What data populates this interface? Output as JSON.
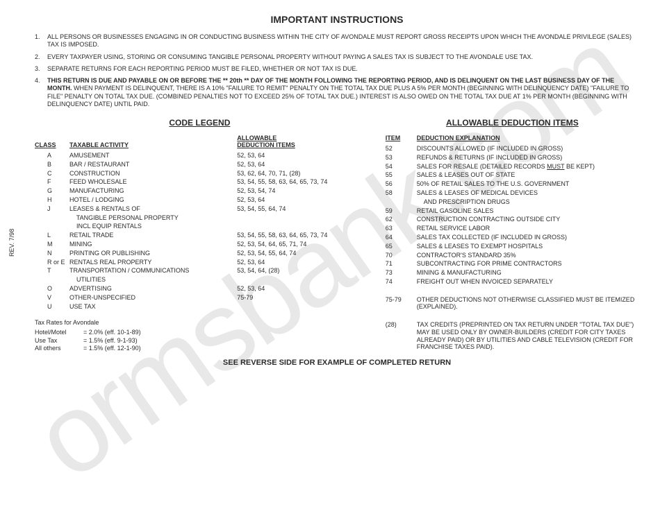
{
  "watermark": "ormsbank.com",
  "rev_label": "REV. 7/98",
  "title": "IMPORTANT INSTRUCTIONS",
  "instructions": [
    {
      "n": "1.",
      "text": "ALL PERSONS OR BUSINESSES ENGAGING IN OR CONDUCTING BUSINESS WITHIN THE CITY OF AVONDALE MUST REPORT GROSS RECEIPTS UPON WHICH THE AVONDALE PRIVILEGE (SALES) TAX IS IMPOSED."
    },
    {
      "n": "2.",
      "text": "EVERY TAXPAYER USING, STORING OR CONSUMING TANGIBLE PERSONAL PROPERTY WITHOUT PAYING A SALES TAX IS SUBJECT TO THE AVONDALE USE TAX."
    },
    {
      "n": "3.",
      "text": "SEPARATE RETURNS FOR EACH REPORTING PERIOD MUST BE FILED, WHETHER OR NOT TAX IS DUE."
    },
    {
      "n": "4.",
      "bold_a": "THIS RETURN IS DUE AND PAYABLE ON OR BEFORE THE ** 20th ** DAY OF THE MONTH FOLLOWING THE REPORTING PERIOD, AND IS DELINQUENT ON THE LAST BUSINESS DAY OF THE MONTH.",
      "text_b": " WHEN PAYMENT IS DELINQUENT, THERE IS A 10% \"FAILURE TO REMIT\" PENALTY ON THE TOTAL TAX DUE PLUS A 5% PER MONTH (BEGINNING WITH DELINQUENCY DATE) \"FAILURE TO FILE\" PENALTY ON TOTAL TAX DUE. (COMBINED PENALTIES NOT TO EXCEED 25% OF TOTAL TAX DUE.) INTEREST IS ALSO OWED ON THE TOTAL TAX DUE AT 1% PER MONTH (BEGINNING WITH DELINQUENCY DATE) UNTIL PAID."
    }
  ],
  "code_legend_title": "CODE LEGEND",
  "code_legend_headers": {
    "class": "CLASS",
    "activity": "TAXABLE ACTIVITY",
    "allow_a": "ALLOWABLE",
    "allow_b": "DEDUCTION ITEMS"
  },
  "code_legend": [
    {
      "c": "A",
      "a": "AMUSEMENT",
      "d": "52, 53, 64"
    },
    {
      "c": "B",
      "a": "BAR / RESTAURANT",
      "d": "52, 53, 64"
    },
    {
      "c": "C",
      "a": "CONSTRUCTION",
      "d": "53, 62, 64, 70, 71, (28)"
    },
    {
      "c": "F",
      "a": "FEED WHOLESALE",
      "d": "53, 54, 55, 58, 63, 64, 65, 73, 74"
    },
    {
      "c": "G",
      "a": "MANUFACTURING",
      "d": "52, 53, 54, 74"
    },
    {
      "c": "H",
      "a": "HOTEL / LODGING",
      "d": "52, 53, 64"
    },
    {
      "c": "J",
      "a": "LEASES & RENTALS OF",
      "d": "53, 54, 55, 64, 74"
    },
    {
      "c": "",
      "a": "    TANGIBLE PERSONAL PROPERTY",
      "d": ""
    },
    {
      "c": "",
      "a": "    INCL EQUIP RENTALS",
      "d": ""
    },
    {
      "c": "L",
      "a": "RETAIL TRADE",
      "d": "53, 54, 55, 58, 63, 64, 65, 73, 74"
    },
    {
      "c": "M",
      "a": "MINING",
      "d": "52, 53, 54, 64, 65, 71, 74"
    },
    {
      "c": "N",
      "a": "PRINTING OR PUBLISHING",
      "d": "52, 53, 54, 55, 64, 74"
    },
    {
      "c": "R or E",
      "a": "RENTALS REAL PROPERTY",
      "d": "52, 53, 64"
    },
    {
      "c": "T",
      "a": "TRANSPORTATION / COMMUNICATIONS",
      "d": "53, 54, 64, (28)"
    },
    {
      "c": "",
      "a": "    UTILITIES",
      "d": ""
    },
    {
      "c": "O",
      "a": "ADVERTISING",
      "d": "52, 53, 64"
    },
    {
      "c": "V",
      "a": "OTHER-UNSPECIFIED",
      "d": "75-79"
    },
    {
      "c": "U",
      "a": "USE TAX",
      "d": ""
    }
  ],
  "rates_title": "Tax Rates for Avondale",
  "rates": [
    {
      "l": "Hotel/Motel",
      "v": "= 2.0%  (eff. 10-1-89)"
    },
    {
      "l": "Use Tax",
      "v": "= 1.5%  (eff. 9-1-93)"
    },
    {
      "l": "All others",
      "v": "= 1.5%  (eff. 12-1-90)"
    }
  ],
  "deduction_title": "ALLOWABLE DEDUCTION ITEMS",
  "deduction_headers": {
    "item": "ITEM",
    "expl": "DEDUCTION EXPLANATION"
  },
  "deductions": [
    {
      "i": "52",
      "e": "DISCOUNTS ALLOWED (IF INCLUDED IN GROSS)"
    },
    {
      "i": "53",
      "e": "REFUNDS & RETURNS (IF INCLUDED IN GROSS)"
    },
    {
      "i": "54",
      "e": "SALES FOR RESALE (DETAILED RECORDS ",
      "u": "MUST",
      "e2": " BE KEPT)"
    },
    {
      "i": "55",
      "e": "SALES & LEASES OUT OF STATE"
    },
    {
      "i": "56",
      "e": "50% OF RETAIL SALES TO THE U.S. GOVERNMENT"
    },
    {
      "i": "58",
      "e": "SALES & LEASES OF MEDICAL DEVICES"
    },
    {
      "i": "",
      "e": "    AND PRESCRIPTION DRUGS"
    },
    {
      "i": "59",
      "e": "RETAIL GASOLINE SALES"
    },
    {
      "i": "62",
      "e": "CONSTRUCTION CONTRACTING OUTSIDE CITY"
    },
    {
      "i": "63",
      "e": "RETAIL SERVICE LABOR"
    },
    {
      "i": "64",
      "e": "SALES TAX COLLECTED (IF INCLUDED IN GROSS)"
    },
    {
      "i": "65",
      "e": "SALES & LEASES TO EXEMPT HOSPITALS"
    },
    {
      "i": "70",
      "e": "CONTRACTOR'S STANDARD 35%"
    },
    {
      "i": "71",
      "e": "SUBCONTRACTING FOR PRIME CONTRACTORS"
    },
    {
      "i": "73",
      "e": "MINING & MANUFACTURING"
    },
    {
      "i": "74",
      "e": "FREIGHT OUT WHEN INVOICED SEPARATELY"
    },
    {
      "i": " ",
      "e": " "
    },
    {
      "i": "75-79",
      "e": "OTHER DEDUCTIONS NOT OTHERWISE CLASSIFIED MUST BE ITEMIZED (EXPLAINED)."
    },
    {
      "i": " ",
      "e": " "
    },
    {
      "i": "(28)",
      "e": "TAX CREDITS (PREPRINTED ON TAX RETURN UNDER \"TOTAL TAX DUE\") MAY BE USED ONLY BY OWNER-BUILDERS (CREDIT FOR CITY TAXES ALREADY PAID) OR BY UTILITIES AND CABLE TELEVISION (CREDIT FOR FRANCHISE TAXES PAID)."
    }
  ],
  "reverse_note": "SEE REVERSE SIDE FOR EXAMPLE OF COMPLETED RETURN"
}
